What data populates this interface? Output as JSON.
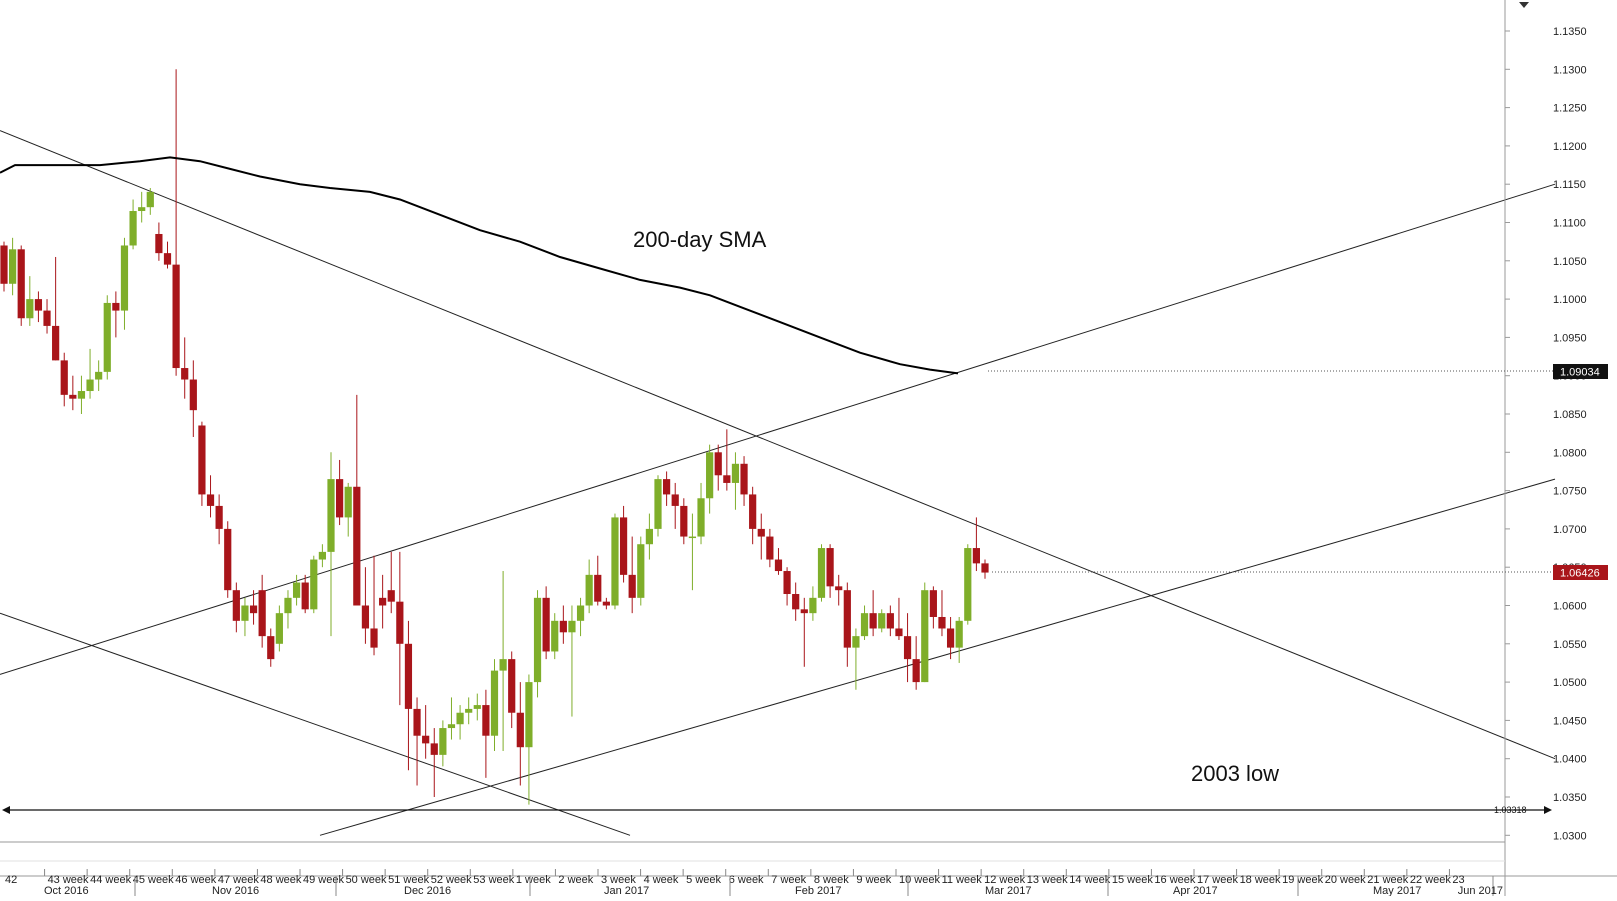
{
  "chart_data": {
    "type": "candlestick",
    "ylim": [
      1.025,
      1.139
    ],
    "y_ticks": [
      "1.1350",
      "1.1300",
      "1.1250",
      "1.1200",
      "1.1150",
      "1.1100",
      "1.1050",
      "1.1000",
      "1.0950",
      "1.0900",
      "1.0850",
      "1.0800",
      "1.0750",
      "1.0700",
      "1.0650",
      "1.0600",
      "1.0550",
      "1.0500",
      "1.0450",
      "1.0400",
      "1.0350",
      "1.0300"
    ],
    "week_labels": [
      "42",
      "43 week",
      "44 week",
      "45 week",
      "46 week",
      "47 week",
      "48 week",
      "49 week",
      "50 week",
      "51 week",
      "52 week",
      "53 week",
      "1 week",
      "2 week",
      "3 week",
      "4 week",
      "5 week",
      "6 week",
      "7 week",
      "8 week",
      "9 week",
      "10 week",
      "11 week",
      "12 week",
      "13 week",
      "14 week",
      "15 week",
      "16 week",
      "17 week",
      "18 week",
      "19 week",
      "20 week",
      "21 week",
      "22 week",
      "23"
    ],
    "month_labels": [
      "Oct 2016",
      "Nov 2016",
      "Dec 2016",
      "Jan 2017",
      "Feb 2017",
      "Mar 2017",
      "Apr 2017",
      "May 2017",
      "Jun 2017"
    ],
    "annotations": {
      "sma_label": "200-day SMA",
      "low_label": "2003 low"
    },
    "price_tags": {
      "sma_value": "1.09034",
      "last_price": "1.06426",
      "low_value": "1.03318"
    },
    "candles": [
      [
        1.107,
        1.1075,
        1.101,
        1.102
      ],
      [
        1.102,
        1.108,
        1.1005,
        1.1065
      ],
      [
        1.1065,
        1.107,
        1.0965,
        1.0975
      ],
      [
        1.0975,
        1.103,
        1.0965,
        1.1
      ],
      [
        1.1,
        1.101,
        1.097,
        1.0985
      ],
      [
        1.0985,
        1.1,
        1.0955,
        1.0965
      ],
      [
        1.0965,
        1.1055,
        1.092,
        1.092
      ],
      [
        1.092,
        1.093,
        1.086,
        1.0875
      ],
      [
        1.0875,
        1.09,
        1.0855,
        1.087
      ],
      [
        1.087,
        1.09,
        1.085,
        1.088
      ],
      [
        1.088,
        1.0935,
        1.087,
        1.0895
      ],
      [
        1.0895,
        1.092,
        1.088,
        1.0905
      ],
      [
        1.0905,
        1.1005,
        1.0895,
        1.0995
      ],
      [
        1.0995,
        1.101,
        1.095,
        1.0985
      ],
      [
        1.0985,
        1.108,
        1.096,
        1.107
      ],
      [
        1.107,
        1.113,
        1.1065,
        1.1115
      ],
      [
        1.1115,
        1.114,
        1.11,
        1.112
      ],
      [
        1.112,
        1.1145,
        1.111,
        1.114
      ],
      [
        1.1085,
        1.11,
        1.105,
        1.106
      ],
      [
        1.106,
        1.1075,
        1.104,
        1.1045
      ],
      [
        1.1045,
        1.13,
        1.09,
        1.091
      ],
      [
        1.091,
        1.095,
        1.087,
        1.0895
      ],
      [
        1.0895,
        1.092,
        1.082,
        1.0855
      ],
      [
        1.0835,
        1.084,
        1.073,
        1.0745
      ],
      [
        1.0745,
        1.077,
        1.0715,
        1.073
      ],
      [
        1.073,
        1.0745,
        1.068,
        1.07
      ],
      [
        1.07,
        1.071,
        1.061,
        1.062
      ],
      [
        1.062,
        1.063,
        1.0565,
        1.058
      ],
      [
        1.058,
        1.061,
        1.056,
        1.06
      ],
      [
        1.06,
        1.062,
        1.0575,
        1.059
      ],
      [
        1.062,
        1.064,
        1.0545,
        1.056
      ],
      [
        1.056,
        1.057,
        1.052,
        1.053
      ],
      [
        1.055,
        1.06,
        1.054,
        1.059
      ],
      [
        1.059,
        1.062,
        1.057,
        1.061
      ],
      [
        1.061,
        1.064,
        1.06,
        1.063
      ],
      [
        1.063,
        1.064,
        1.059,
        1.0595
      ],
      [
        1.0595,
        1.0665,
        1.059,
        1.066
      ],
      [
        1.066,
        1.068,
        1.065,
        1.067
      ],
      [
        1.067,
        1.08,
        1.056,
        1.0765
      ],
      [
        1.0765,
        1.079,
        1.0705,
        1.0715
      ],
      [
        1.0715,
        1.076,
        1.069,
        1.0755
      ],
      [
        1.0755,
        1.0875,
        1.061,
        1.06
      ],
      [
        1.06,
        1.065,
        1.055,
        1.057
      ],
      [
        1.057,
        1.0665,
        1.0535,
        1.0545
      ],
      [
        1.061,
        1.064,
        1.057,
        1.06
      ],
      [
        1.062,
        1.067,
        1.059,
        1.0605
      ],
      [
        1.0605,
        1.067,
        1.047,
        1.055
      ],
      [
        1.055,
        1.058,
        1.0385,
        1.0465
      ],
      [
        1.0465,
        1.048,
        1.0365,
        1.043
      ],
      [
        1.043,
        1.047,
        1.04,
        1.042
      ],
      [
        1.042,
        1.044,
        1.035,
        1.0405
      ],
      [
        1.0405,
        1.045,
        1.039,
        1.044
      ],
      [
        1.044,
        1.048,
        1.0425,
        1.0445
      ],
      [
        1.0445,
        1.047,
        1.0425,
        1.046
      ],
      [
        1.046,
        1.048,
        1.0445,
        1.0465
      ],
      [
        1.0465,
        1.0485,
        1.045,
        1.047
      ],
      [
        1.047,
        1.049,
        1.0375,
        1.043
      ],
      [
        1.043,
        1.053,
        1.041,
        1.0515
      ],
      [
        1.0515,
        1.0645,
        1.041,
        1.053
      ],
      [
        1.053,
        1.054,
        1.044,
        1.046
      ],
      [
        1.046,
        1.05,
        1.0365,
        1.0415
      ],
      [
        1.0415,
        1.051,
        1.034,
        1.05
      ],
      [
        1.05,
        1.062,
        1.048,
        1.061
      ],
      [
        1.061,
        1.0625,
        1.053,
        1.054
      ],
      [
        1.054,
        1.059,
        1.053,
        1.058
      ],
      [
        1.058,
        1.06,
        1.055,
        1.0565
      ],
      [
        1.0565,
        1.06,
        1.0455,
        1.058
      ],
      [
        1.058,
        1.061,
        1.056,
        1.06
      ],
      [
        1.06,
        1.066,
        1.059,
        1.064
      ],
      [
        1.064,
        1.0665,
        1.06,
        1.0605
      ],
      [
        1.0605,
        1.061,
        1.0595,
        1.06
      ],
      [
        1.06,
        1.072,
        1.0595,
        1.0715
      ],
      [
        1.0715,
        1.073,
        1.063,
        1.064
      ],
      [
        1.064,
        1.069,
        1.059,
        1.061
      ],
      [
        1.061,
        1.069,
        1.06,
        1.068
      ],
      [
        1.068,
        1.072,
        1.066,
        1.07
      ],
      [
        1.07,
        1.077,
        1.069,
        1.0765
      ],
      [
        1.0765,
        1.0775,
        1.073,
        1.0745
      ],
      [
        1.0745,
        1.076,
        1.07,
        1.073
      ],
      [
        1.073,
        1.074,
        1.068,
        1.069
      ],
      [
        1.069,
        1.072,
        1.062,
        1.069
      ],
      [
        1.069,
        1.076,
        1.068,
        1.074
      ],
      [
        1.074,
        1.081,
        1.072,
        1.08
      ],
      [
        1.08,
        1.081,
        1.075,
        1.077
      ],
      [
        1.077,
        1.083,
        1.075,
        1.076
      ],
      [
        1.076,
        1.08,
        1.0725,
        1.0785
      ],
      [
        1.0785,
        1.0795,
        1.073,
        1.0745
      ],
      [
        1.0745,
        1.0755,
        1.068,
        1.07
      ],
      [
        1.07,
        1.072,
        1.066,
        1.069
      ],
      [
        1.069,
        1.07,
        1.065,
        1.066
      ],
      [
        1.066,
        1.0675,
        1.064,
        1.0645
      ],
      [
        1.0645,
        1.065,
        1.06,
        1.0615
      ],
      [
        1.0615,
        1.063,
        1.058,
        1.0595
      ],
      [
        1.0595,
        1.061,
        1.052,
        1.059
      ],
      [
        1.059,
        1.0625,
        1.058,
        1.061
      ],
      [
        1.061,
        1.068,
        1.0605,
        1.0675
      ],
      [
        1.0675,
        1.068,
        1.061,
        1.0625
      ],
      [
        1.0625,
        1.064,
        1.06,
        1.062
      ],
      [
        1.062,
        1.063,
        1.052,
        1.0545
      ],
      [
        1.0545,
        1.057,
        1.049,
        1.056
      ],
      [
        1.056,
        1.06,
        1.0555,
        1.059
      ],
      [
        1.059,
        1.062,
        1.056,
        1.057
      ],
      [
        1.057,
        1.0595,
        1.0565,
        1.059
      ],
      [
        1.059,
        1.06,
        1.056,
        1.057
      ],
      [
        1.057,
        1.061,
        1.0555,
        1.056
      ],
      [
        1.056,
        1.059,
        1.05,
        1.053
      ],
      [
        1.053,
        1.056,
        1.049,
        1.05
      ],
      [
        1.05,
        1.063,
        1.05,
        1.062
      ],
      [
        1.062,
        1.0625,
        1.057,
        1.0585
      ],
      [
        1.0585,
        1.062,
        1.056,
        1.057
      ],
      [
        1.057,
        1.0585,
        1.053,
        1.0545
      ],
      [
        1.0545,
        1.0585,
        1.0525,
        1.058
      ],
      [
        1.058,
        1.068,
        1.0575,
        1.0675
      ],
      [
        1.0675,
        1.0715,
        1.0645,
        1.0655
      ],
      [
        1.0655,
        1.066,
        1.0635,
        1.0643
      ]
    ],
    "sma_200": [
      [
        0,
        1.1165
      ],
      [
        15,
        1.1175
      ],
      [
        60,
        1.1175
      ],
      [
        100,
        1.1175
      ],
      [
        140,
        1.118
      ],
      [
        170,
        1.1185
      ],
      [
        200,
        1.118
      ],
      [
        230,
        1.117
      ],
      [
        260,
        1.116
      ],
      [
        300,
        1.115
      ],
      [
        330,
        1.1145
      ],
      [
        370,
        1.114
      ],
      [
        400,
        1.113
      ],
      [
        440,
        1.111
      ],
      [
        480,
        1.109
      ],
      [
        520,
        1.1075
      ],
      [
        560,
        1.1055
      ],
      [
        600,
        1.104
      ],
      [
        640,
        1.1025
      ],
      [
        680,
        1.1015
      ],
      [
        710,
        1.1005
      ],
      [
        740,
        1.099
      ],
      [
        780,
        1.097
      ],
      [
        820,
        1.095
      ],
      [
        860,
        1.093
      ],
      [
        900,
        1.0915
      ],
      [
        930,
        1.0908
      ],
      [
        958,
        1.0903
      ]
    ]
  }
}
